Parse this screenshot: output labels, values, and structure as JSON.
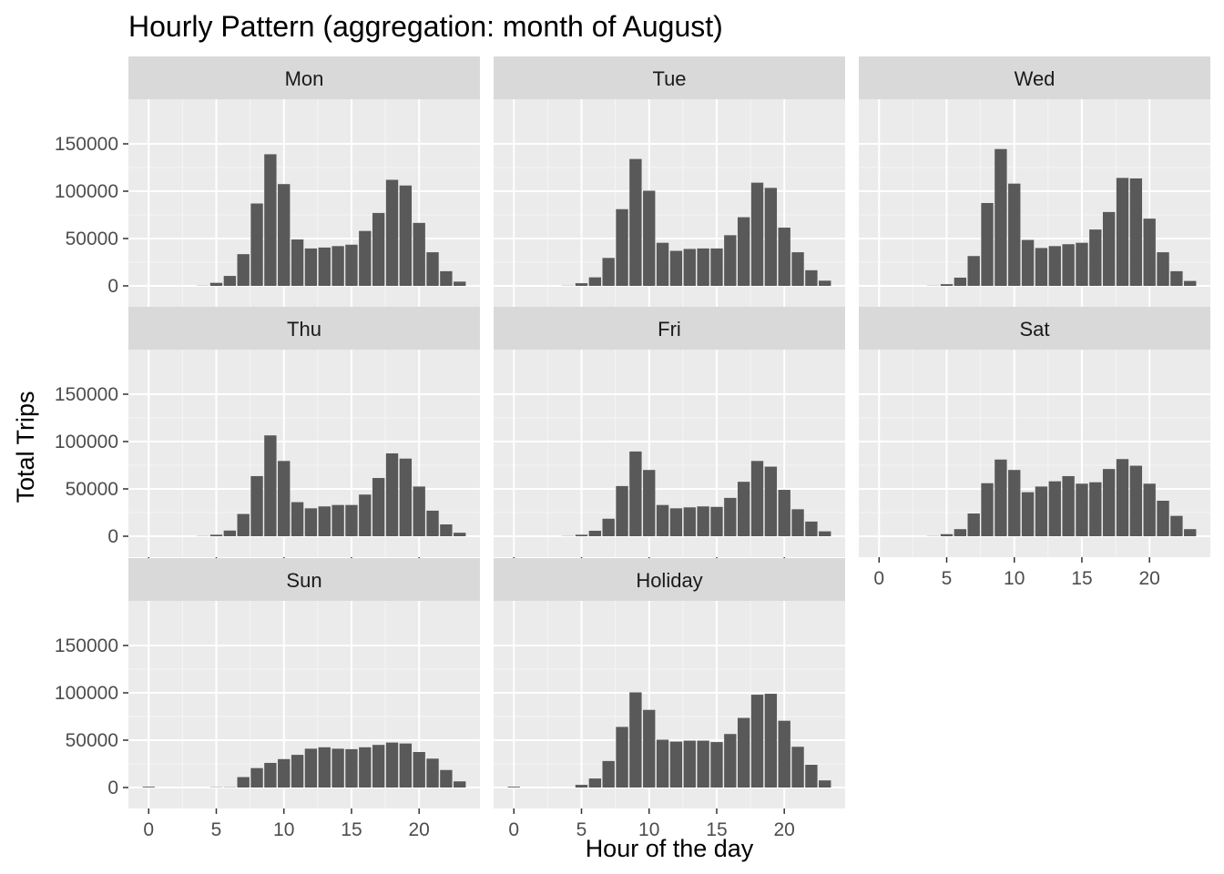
{
  "chart_data": {
    "type": "bar",
    "title": "Hourly Pattern (aggregation: month of August)",
    "xlabel": "Hour of the day",
    "ylabel": "Total Trips",
    "xlim": [
      -1.5,
      24.5
    ],
    "ylim": [
      0,
      150000
    ],
    "x_ticks": [
      0,
      5,
      10,
      15,
      20
    ],
    "y_ticks": [
      0,
      50000,
      100000,
      150000
    ],
    "grid": true,
    "bar_color": "#595959",
    "panel_background": "#ebebeb",
    "strip_background": "#d9d9d9",
    "x": [
      0,
      1,
      2,
      3,
      4,
      5,
      6,
      7,
      8,
      9,
      10,
      11,
      12,
      13,
      14,
      15,
      16,
      17,
      18,
      19,
      20,
      21,
      22,
      23
    ],
    "series": [
      {
        "name": "Mon",
        "values": [
          0,
          0,
          0,
          0,
          200,
          3200,
          10500,
          33500,
          87000,
          139000,
          107500,
          49000,
          39500,
          40500,
          42000,
          43500,
          58000,
          77000,
          112000,
          106000,
          66500,
          35500,
          15500,
          4500
        ]
      },
      {
        "name": "Tue",
        "values": [
          0,
          0,
          0,
          0,
          200,
          2800,
          9000,
          29500,
          81000,
          134000,
          100500,
          45500,
          37000,
          39000,
          39500,
          39500,
          53500,
          72500,
          109000,
          103500,
          61500,
          35500,
          16500,
          5500
        ]
      },
      {
        "name": "Wed",
        "values": [
          0,
          0,
          0,
          0,
          200,
          1800,
          8700,
          31500,
          87500,
          144500,
          108000,
          48500,
          40000,
          42000,
          44000,
          45500,
          59500,
          78000,
          114000,
          113500,
          71000,
          35500,
          15500,
          5200
        ]
      },
      {
        "name": "Thu",
        "values": [
          0,
          0,
          0,
          0,
          200,
          1600,
          6000,
          23500,
          63500,
          106500,
          79500,
          36000,
          29500,
          31500,
          33000,
          33000,
          44000,
          61500,
          87500,
          82000,
          52500,
          27000,
          12500,
          3700
        ]
      },
      {
        "name": "Fri",
        "values": [
          0,
          0,
          0,
          0,
          200,
          1600,
          5800,
          18500,
          53000,
          89500,
          70000,
          33000,
          29500,
          30500,
          31500,
          31000,
          40500,
          57500,
          79500,
          73500,
          49000,
          28500,
          15500,
          5200
        ]
      },
      {
        "name": "Sat",
        "values": [
          0,
          0,
          0,
          0,
          200,
          2200,
          7500,
          24000,
          56000,
          81000,
          70000,
          46500,
          52500,
          58000,
          63500,
          55500,
          57000,
          71000,
          81500,
          74500,
          55500,
          37500,
          21500,
          7500
        ]
      },
      {
        "name": "Sun",
        "values": [
          800,
          0,
          0,
          0,
          0,
          300,
          300,
          11000,
          20500,
          26000,
          30000,
          34500,
          41000,
          42500,
          41000,
          40500,
          42500,
          45000,
          47500,
          46500,
          37500,
          30500,
          18500,
          6500
        ]
      },
      {
        "name": "Holiday",
        "values": [
          800,
          0,
          0,
          0,
          0,
          2800,
          9500,
          28000,
          64000,
          100500,
          82000,
          50500,
          48500,
          49500,
          49500,
          48000,
          56500,
          73500,
          98000,
          99000,
          70500,
          43000,
          24000,
          7500
        ]
      }
    ]
  }
}
